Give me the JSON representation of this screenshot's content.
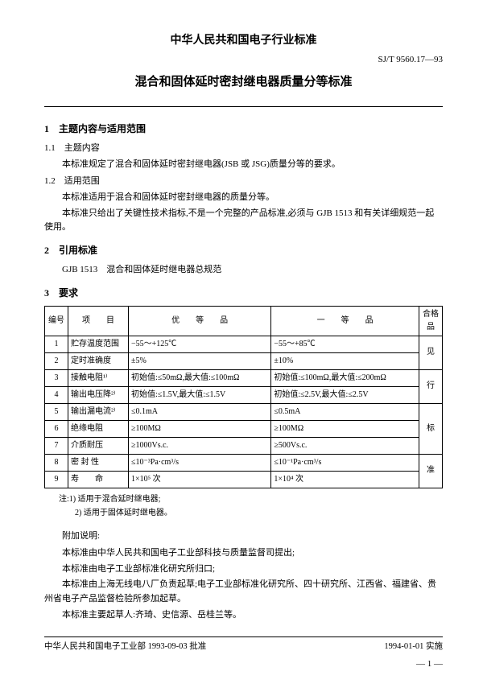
{
  "header": {
    "org_title": "中华人民共和国电子行业标准",
    "standard_code": "SJ/T 9560.17—93",
    "doc_title": "混合和固体延时密封继电器质量分等标准"
  },
  "section1": {
    "heading": "1　主题内容与适用范围",
    "sub1_heading": "1.1　主题内容",
    "sub1_body": "本标准规定了混合和固体延时密封继电器(JSB 或 JSG)质量分等的要求。",
    "sub2_heading": "1.2　适用范围",
    "sub2_body1": "本标准适用于混合和固体延时密封继电器的质量分等。",
    "sub2_body2": "本标准只给出了关键性技术指标,不是一个完整的产品标准,必须与 GJB 1513 和有关详细规范一起使用。"
  },
  "section2": {
    "heading": "2　引用标准",
    "body": "GJB 1513　混合和固体延时继电器总规范"
  },
  "section3": {
    "heading": "3　要求",
    "table": {
      "headers": [
        "编号",
        "项　　目",
        "优　　等　　品",
        "一　　等　　品",
        "合格品"
      ],
      "vnote": [
        "见",
        "行",
        "标",
        "准"
      ],
      "rows": [
        {
          "num": "1",
          "item": "贮存温度范围",
          "you": "−55～+125℃",
          "yi": "−55～+85℃"
        },
        {
          "num": "2",
          "item": "定时准确度",
          "you": "±5%",
          "yi": "±10%"
        },
        {
          "num": "3",
          "item": "接触电阻¹⁾",
          "you": "初始值:≤50mΩ,最大值:≤100mΩ",
          "yi": "初始值:≤100mΩ,最大值:≤200mΩ"
        },
        {
          "num": "4",
          "item": "输出电压降²⁾",
          "you": "初始值:≤1.5V,最大值:≤1.5V",
          "yi": "初始值:≤2.5V,最大值:≤2.5V"
        },
        {
          "num": "5",
          "item": "输出漏电流²⁾",
          "you": "≤0.1mA",
          "yi": "≤0.5mA"
        },
        {
          "num": "6",
          "item": "绝缘电阻",
          "you": "≥100MΩ",
          "yi": "≥100MΩ"
        },
        {
          "num": "7",
          "item": "介质耐压",
          "you": "≥1000Vs.c.",
          "yi": "≥500Vs.c."
        },
        {
          "num": "8",
          "item": "密 封 性",
          "you": "≤10⁻³Pa·cm³/s",
          "yi": "≤10⁻¹Pa·cm³/s"
        },
        {
          "num": "9",
          "item": "寿　　命",
          "you": "1×10⁵ 次",
          "yi": "1×10⁴ 次"
        }
      ]
    },
    "notes": {
      "n1": "注:1) 适用于混合延时继电器;",
      "n2": "　　2) 适用于固体延时继电器。"
    }
  },
  "addendum": {
    "heading": "附加说明:",
    "p1": "本标准由中华人民共和国电子工业部科技与质量监督司提出;",
    "p2": "本标准由电子工业部标准化研究所归口;",
    "p3": "本标准由上海无线电八厂负责起草;电子工业部标准化研究所、四十研究所、江西省、福建省、贵州省电子产品监督检验所参加起草。",
    "p4": "本标准主要起草人:齐琦、史信源、岳桂兰等。"
  },
  "footer": {
    "left": "中华人民共和国电子工业部 1993-09-03 批准",
    "right": "1994-01-01 实施",
    "page": "— 1 —"
  }
}
